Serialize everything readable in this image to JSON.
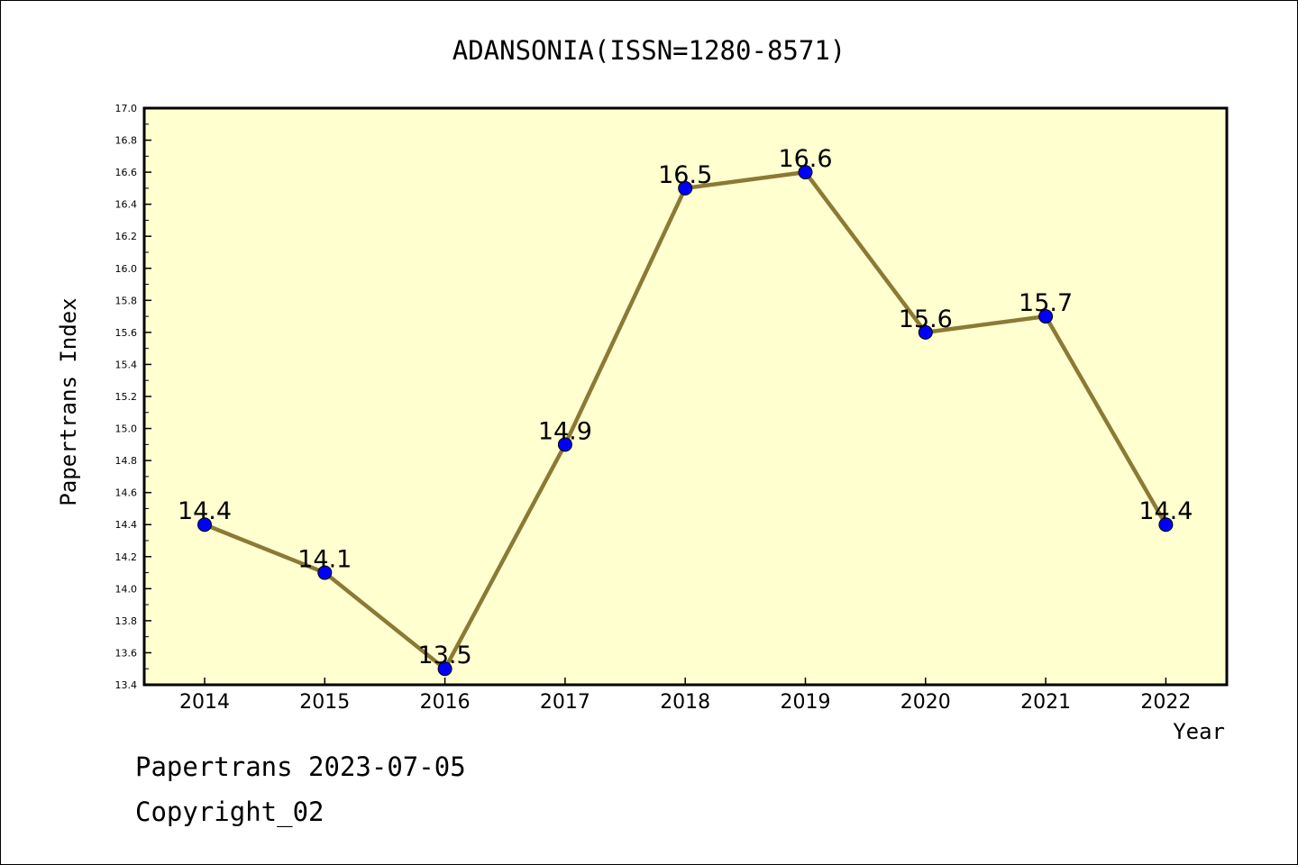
{
  "chart_data": {
    "type": "line",
    "title": "ADANSONIA(ISSN=1280-8571)",
    "xlabel": "Year",
    "ylabel": "Papertrans Index",
    "categories": [
      "2014",
      "2015",
      "2016",
      "2017",
      "2018",
      "2019",
      "2020",
      "2021",
      "2022"
    ],
    "values": [
      14.4,
      14.1,
      13.5,
      14.9,
      16.5,
      16.6,
      15.6,
      15.7,
      14.4
    ],
    "data_labels": [
      "14.4",
      "14.1",
      "13.5",
      "14.9",
      "16.5",
      "16.6",
      "15.6",
      "15.7",
      "14.4"
    ],
    "ylim": [
      13.4,
      17.0
    ],
    "y_ticks": [
      "13.4",
      "13.6",
      "13.8",
      "14.0",
      "14.2",
      "14.4",
      "14.6",
      "14.8",
      "15.0",
      "15.2",
      "15.4",
      "15.6",
      "15.8",
      "16.0",
      "16.2",
      "16.4",
      "16.6",
      "16.8",
      "17.0"
    ],
    "grid": false,
    "legend": "none",
    "colors": {
      "plot_background": "#ffffd0",
      "line": "#8b7a35",
      "marker": "#0000ff"
    }
  },
  "footer": {
    "line1": "Papertrans 2023-07-05",
    "line2": "Copyright_02"
  }
}
